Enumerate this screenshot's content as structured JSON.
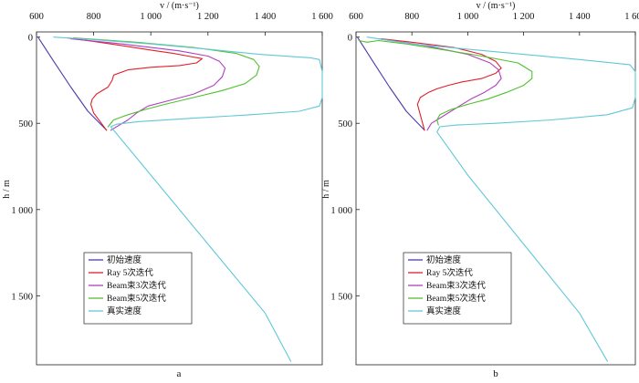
{
  "chart_data": [
    {
      "type": "line",
      "panel_label": "a",
      "xlabel": "v / (m·s⁻¹)",
      "ylabel": "h / m",
      "x_axis_position": "top",
      "y_axis_inverted": true,
      "xlim": [
        600,
        1600
      ],
      "ylim": [
        1900,
        -30
      ],
      "xticks": [
        600,
        800,
        1000,
        1200,
        1400,
        1600
      ],
      "xtick_labels": [
        "600",
        "800",
        "1 000",
        "1 200",
        "1 400",
        "1 600"
      ],
      "yticks": [
        0,
        500,
        1000,
        1500
      ],
      "ytick_labels": [
        "0",
        "500",
        "1 000",
        "1 500"
      ],
      "grid": false,
      "legend_position": "bottom-left",
      "series": [
        {
          "name": "初始速度",
          "color": "#4a3cb0",
          "x": [
            605,
            660,
            720,
            780,
            845
          ],
          "y": [
            0,
            140,
            290,
            430,
            540
          ]
        },
        {
          "name": "Ray 5次迭代",
          "color": "#e0202a",
          "x": [
            710,
            800,
            900,
            1000,
            1080,
            1130,
            1180,
            1160,
            1100,
            1000,
            920,
            870,
            865,
            850,
            810,
            795,
            790,
            800,
            845
          ],
          "y": [
            5,
            25,
            50,
            75,
            95,
            110,
            125,
            150,
            165,
            175,
            190,
            220,
            250,
            290,
            330,
            360,
            390,
            440,
            540
          ]
        },
        {
          "name": "Beam束3次迭代",
          "color": "#b040c0",
          "x": [
            720,
            900,
            1100,
            1200,
            1240,
            1260,
            1250,
            1220,
            1150,
            1060,
            990,
            950,
            920,
            890,
            860
          ],
          "y": [
            10,
            40,
            80,
            110,
            140,
            180,
            230,
            280,
            330,
            370,
            400,
            440,
            480,
            510,
            540
          ]
        },
        {
          "name": "Beam束5次迭代",
          "color": "#50c030",
          "x": [
            730,
            950,
            1150,
            1300,
            1360,
            1380,
            1370,
            1330,
            1250,
            1150,
            1050,
            980,
            920,
            870,
            850
          ],
          "y": [
            5,
            30,
            60,
            95,
            130,
            170,
            220,
            270,
            310,
            350,
            390,
            420,
            450,
            480,
            520
          ]
        },
        {
          "name": "真实速度",
          "color": "#60c8d8",
          "x": [
            660,
            800,
            1000,
            1200,
            1380,
            1560,
            1590,
            1600,
            1600,
            1600,
            1590,
            1520,
            1350,
            1150,
            960,
            880,
            860,
            1000,
            1200,
            1400,
            1490
          ],
          "y": [
            0,
            15,
            40,
            70,
            100,
            120,
            130,
            200,
            300,
            350,
            400,
            430,
            450,
            470,
            490,
            505,
            520,
            800,
            1200,
            1600,
            1880
          ]
        }
      ]
    },
    {
      "type": "line",
      "panel_label": "b",
      "xlabel": "v / (m·s⁻¹)",
      "ylabel": "h / m",
      "x_axis_position": "top",
      "y_axis_inverted": true,
      "xlim": [
        600,
        1600
      ],
      "ylim": [
        1900,
        -30
      ],
      "xticks": [
        600,
        800,
        1000,
        1200,
        1400,
        1600
      ],
      "xtick_labels": [
        "600",
        "800",
        "1 000",
        "1 200",
        "1 400",
        "1 600"
      ],
      "yticks": [
        0,
        500,
        1000,
        1500
      ],
      "ytick_labels": [
        "0",
        "500",
        "1 000",
        "1 500"
      ],
      "grid": false,
      "legend_position": "bottom-left",
      "series": [
        {
          "name": "初始速度",
          "color": "#4a3cb0",
          "x": [
            605,
            660,
            720,
            780,
            845
          ],
          "y": [
            0,
            140,
            290,
            430,
            540
          ]
        },
        {
          "name": "Ray 5次迭代",
          "color": "#e0202a",
          "x": [
            690,
            800,
            950,
            1050,
            1100,
            1120,
            1100,
            1050,
            980,
            930,
            890,
            860,
            830,
            820,
            830,
            845
          ],
          "y": [
            10,
            30,
            60,
            100,
            140,
            180,
            210,
            240,
            260,
            280,
            300,
            320,
            350,
            390,
            450,
            540
          ]
        },
        {
          "name": "Beam束3次迭代",
          "color": "#b040c0",
          "x": [
            680,
            850,
            1000,
            1080,
            1110,
            1120,
            1100,
            1060,
            1010,
            970,
            930,
            900,
            870,
            855
          ],
          "y": [
            10,
            50,
            100,
            150,
            190,
            240,
            280,
            320,
            360,
            400,
            440,
            470,
            500,
            540
          ]
        },
        {
          "name": "Beam束5次迭代",
          "color": "#50c030",
          "x": [
            610,
            640,
            680,
            780,
            900,
            1050,
            1180,
            1230,
            1230,
            1200,
            1140,
            1070,
            1000,
            940,
            900,
            890,
            895
          ],
          "y": [
            20,
            30,
            20,
            40,
            70,
            110,
            150,
            200,
            240,
            280,
            320,
            360,
            390,
            420,
            450,
            480,
            510
          ]
        },
        {
          "name": "真实速度",
          "color": "#60c8d8",
          "x": [
            640,
            800,
            1000,
            1200,
            1400,
            1580,
            1600,
            1600,
            1600,
            1590,
            1500,
            1300,
            1100,
            960,
            900,
            890,
            1000,
            1200,
            1400,
            1500
          ],
          "y": [
            0,
            40,
            70,
            100,
            130,
            160,
            200,
            280,
            350,
            410,
            450,
            480,
            500,
            510,
            520,
            550,
            800,
            1200,
            1600,
            1880
          ]
        }
      ]
    }
  ]
}
